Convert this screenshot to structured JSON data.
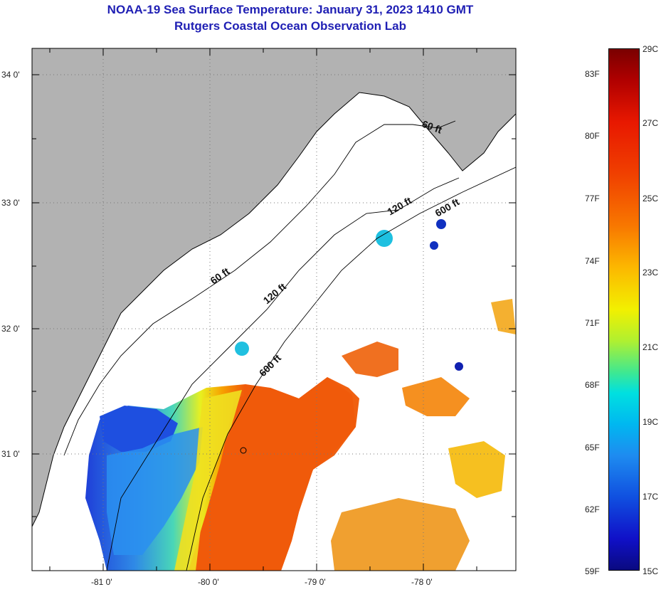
{
  "header": {
    "title": "NOAA-19 Sea Surface Temperature:  January 31, 2023 1410 GMT",
    "subtitle": "Rutgers Coastal Ocean Observation Lab"
  },
  "axes": {
    "x_ticks": [
      "-81 0'",
      "-80 0'",
      "-79 0'",
      "-78 0'"
    ],
    "y_ticks": [
      "34 0'",
      "33 0'",
      "32 0'",
      "31 0'"
    ]
  },
  "isobaths": {
    "shallow_a": "60 ft",
    "shallow_b": "60 ft",
    "mid_a": "120 ft",
    "mid_b": "120 ft",
    "deep_a": "600 ft",
    "deep_b": "600 ft"
  },
  "colorbar": {
    "fahrenheit": [
      "83F",
      "80F",
      "77F",
      "74F",
      "71F",
      "68F",
      "65F",
      "62F",
      "59F"
    ],
    "celsius": [
      "29C",
      "27C",
      "25C",
      "23C",
      "21C",
      "19C",
      "17C",
      "15C"
    ],
    "colors": [
      "#7a0000",
      "#e81800",
      "#f87800",
      "#f2f000",
      "#40e890",
      "#00b8f0",
      "#1050e0",
      "#0a0a80"
    ]
  },
  "legend_colors": {
    "land": "#b2b2b2",
    "cloud": "#ffffff"
  }
}
